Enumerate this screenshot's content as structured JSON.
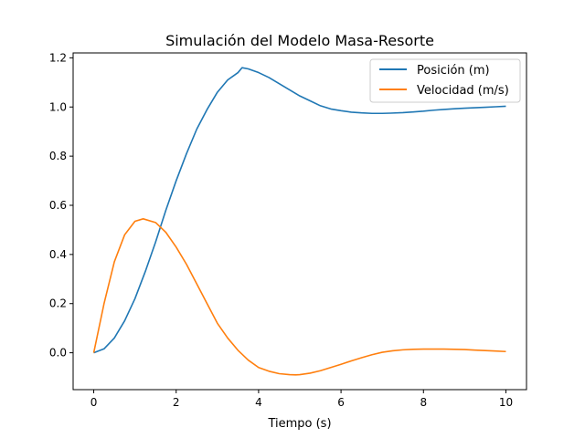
{
  "chart_data": {
    "type": "line",
    "title": "Simulación del Modelo Masa-Resorte",
    "xlabel": "Tiempo (s)",
    "ylabel": "",
    "xlim": [
      -0.5,
      10.5
    ],
    "ylim": [
      -0.15,
      1.22
    ],
    "xticks": [
      0,
      2,
      4,
      6,
      8,
      10
    ],
    "yticks": [
      0.0,
      0.2,
      0.4,
      0.6,
      0.8,
      1.0,
      1.2
    ],
    "xtick_labels": [
      "0",
      "2",
      "4",
      "6",
      "8",
      "10"
    ],
    "ytick_labels": [
      "0.0",
      "0.2",
      "0.4",
      "0.6",
      "0.8",
      "1.0",
      "1.2"
    ],
    "grid": false,
    "legend_position": "top-right",
    "series": [
      {
        "name": "Posición (m)",
        "color": "#1f77b4",
        "x": [
          0,
          0.25,
          0.5,
          0.75,
          1.0,
          1.25,
          1.5,
          1.75,
          2.0,
          2.25,
          2.5,
          2.75,
          3.0,
          3.25,
          3.5,
          3.6,
          3.75,
          4.0,
          4.25,
          4.5,
          4.75,
          5.0,
          5.25,
          5.5,
          5.75,
          6.0,
          6.25,
          6.5,
          6.75,
          7.0,
          7.2,
          7.5,
          7.75,
          8.0,
          8.25,
          8.5,
          8.75,
          9.0,
          9.25,
          9.5,
          9.75,
          10.0
        ],
        "y": [
          0.0,
          0.016,
          0.06,
          0.13,
          0.22,
          0.33,
          0.45,
          0.58,
          0.7,
          0.81,
          0.91,
          0.99,
          1.06,
          1.11,
          1.14,
          1.16,
          1.155,
          1.14,
          1.12,
          1.095,
          1.07,
          1.045,
          1.025,
          1.005,
          0.992,
          0.985,
          0.979,
          0.976,
          0.974,
          0.974,
          0.975,
          0.977,
          0.98,
          0.983,
          0.987,
          0.99,
          0.993,
          0.995,
          0.997,
          0.999,
          1.001,
          1.003
        ]
      },
      {
        "name": "Velocidad (m/s)",
        "color": "#ff7f0e",
        "x": [
          0,
          0.25,
          0.5,
          0.75,
          1.0,
          1.2,
          1.5,
          1.75,
          2.0,
          2.25,
          2.5,
          2.75,
          3.0,
          3.25,
          3.5,
          3.75,
          4.0,
          4.25,
          4.5,
          4.75,
          4.9,
          5.0,
          5.25,
          5.5,
          5.75,
          6.0,
          6.25,
          6.5,
          6.75,
          7.0,
          7.25,
          7.5,
          7.75,
          8.0,
          8.25,
          8.5,
          8.75,
          9.0,
          9.25,
          9.5,
          9.75,
          10.0
        ],
        "y": [
          0.0,
          0.2,
          0.37,
          0.48,
          0.535,
          0.545,
          0.53,
          0.49,
          0.43,
          0.36,
          0.28,
          0.2,
          0.12,
          0.06,
          0.01,
          -0.03,
          -0.06,
          -0.075,
          -0.085,
          -0.089,
          -0.09,
          -0.089,
          -0.083,
          -0.073,
          -0.06,
          -0.047,
          -0.033,
          -0.02,
          -0.008,
          0.002,
          0.008,
          0.012,
          0.014,
          0.015,
          0.015,
          0.015,
          0.014,
          0.013,
          0.011,
          0.009,
          0.007,
          0.005
        ]
      }
    ]
  }
}
